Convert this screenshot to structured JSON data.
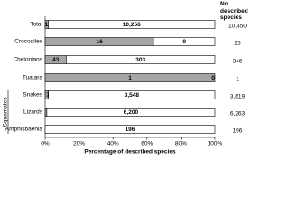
{
  "chart_data": {
    "type": "stacked_percent_bar",
    "xlabel": "Percentage of described species",
    "group_label": "Squamates",
    "categories": [
      "Total",
      "Crocodiles",
      "Chelonians",
      "Tuatara",
      "Snakes",
      "Lizards",
      "Amphisbaenia"
    ],
    "series": [
      {
        "color": "#a6a6a6",
        "values": [
          194,
          16,
          43,
          1,
          71,
          63,
          0
        ]
      },
      {
        "color": "#ffffff",
        "values": [
          10256,
          9,
          303,
          0,
          3548,
          6200,
          196
        ],
        "value_labels": [
          "10,256",
          "9",
          "303",
          "0",
          "3,548",
          "6,200",
          "196"
        ]
      }
    ],
    "totals": {
      "header": "No. described species",
      "values": [
        10450,
        25,
        346,
        1,
        3619,
        6263,
        196
      ],
      "value_labels": [
        "10,450",
        "25",
        "346",
        "1",
        "3,619",
        "6,263",
        "196"
      ]
    },
    "xlim": [
      0,
      100
    ],
    "xticks": [
      {
        "value": 0,
        "label": "0%"
      },
      {
        "value": 20,
        "label": "20%"
      },
      {
        "value": 40,
        "label": "40%"
      },
      {
        "value": 60,
        "label": "60%"
      },
      {
        "value": 80,
        "label": "80%"
      },
      {
        "value": 100,
        "label": "100%"
      }
    ]
  }
}
